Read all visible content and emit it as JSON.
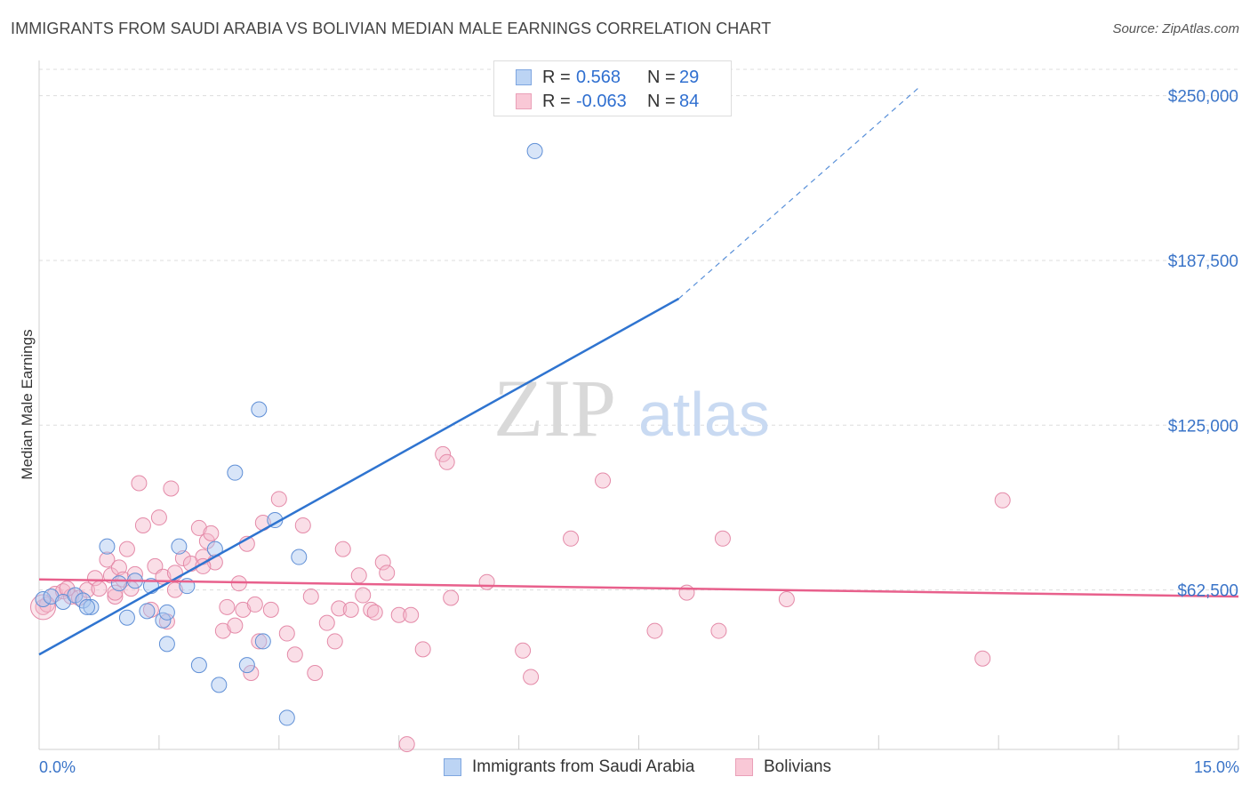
{
  "title": "IMMIGRANTS FROM SAUDI ARABIA VS BOLIVIAN MEDIAN MALE EARNINGS CORRELATION CHART",
  "source": "Source: ZipAtlas.com",
  "watermark": {
    "zip": "ZIP",
    "atlas": "atlas"
  },
  "colors": {
    "blue": "#2f74d0",
    "blue_fill": "#a8c6f0",
    "pink": "#e8608c",
    "pink_fill": "#f4b6c9",
    "tick_text": "#3a74c8"
  },
  "legend": {
    "rows": [
      {
        "r_label": "R =",
        "r_value": "0.568",
        "n_label": "N =",
        "n_value": "29"
      },
      {
        "r_label": "R =",
        "r_value": "-0.063",
        "n_label": "N =",
        "n_value": "84"
      }
    ]
  },
  "series_labels": {
    "blue": "Immigrants from Saudi Arabia",
    "pink": "Bolivians"
  },
  "chart_data": {
    "type": "scatter",
    "title": "IMMIGRANTS FROM SAUDI ARABIA VS BOLIVIAN MEDIAN MALE EARNINGS CORRELATION CHART",
    "xlabel": "",
    "ylabel": "Median Male Earnings",
    "xlim": [
      0,
      15
    ],
    "ylim": [
      2000,
      260000
    ],
    "x_tick_labels": [
      "0.0%",
      "15.0%"
    ],
    "y_ticks": [
      62500,
      125000,
      187500,
      250000
    ],
    "y_tick_labels": [
      "$62,500",
      "$125,000",
      "$187,500",
      "$250,000"
    ],
    "grid": true,
    "legend_position": "top-center",
    "series": [
      {
        "name": "Immigrants from Saudi Arabia",
        "r": 0.568,
        "n": 29,
        "trend": {
          "x0": 0,
          "y0": 38000,
          "x1": 8,
          "y1": 173000,
          "dashed_to_x": 11,
          "dashed_to_y": 253000
        },
        "points": [
          [
            0.05,
            59000
          ],
          [
            0.15,
            60000
          ],
          [
            0.3,
            58000
          ],
          [
            0.45,
            60500
          ],
          [
            0.55,
            58500
          ],
          [
            0.65,
            56000
          ],
          [
            0.85,
            79000
          ],
          [
            1.0,
            65000
          ],
          [
            1.1,
            52000
          ],
          [
            1.2,
            66000
          ],
          [
            1.35,
            54500
          ],
          [
            1.4,
            64000
          ],
          [
            1.55,
            51000
          ],
          [
            1.6,
            42000
          ],
          [
            1.75,
            79000
          ],
          [
            1.85,
            64000
          ],
          [
            2.0,
            34000
          ],
          [
            2.2,
            78000
          ],
          [
            2.25,
            26500
          ],
          [
            2.45,
            107000
          ],
          [
            2.6,
            34000
          ],
          [
            2.75,
            131000
          ],
          [
            2.8,
            43000
          ],
          [
            2.95,
            89000
          ],
          [
            3.1,
            14000
          ],
          [
            3.25,
            75000
          ],
          [
            1.6,
            54000
          ],
          [
            0.6,
            56000
          ],
          [
            6.2,
            229000
          ]
        ]
      },
      {
        "name": "Bolivians",
        "r": -0.063,
        "n": 84,
        "trend": {
          "x0": 0,
          "y0": 66500,
          "x1": 15,
          "y1": 60000
        },
        "points": [
          [
            0.05,
            56000
          ],
          [
            0.1,
            57000
          ],
          [
            0.2,
            61000
          ],
          [
            0.3,
            62000
          ],
          [
            0.4,
            60000
          ],
          [
            0.5,
            59500
          ],
          [
            0.6,
            62500
          ],
          [
            0.7,
            67000
          ],
          [
            0.75,
            63000
          ],
          [
            0.85,
            74000
          ],
          [
            0.9,
            68000
          ],
          [
            0.95,
            60000
          ],
          [
            1.0,
            71000
          ],
          [
            1.05,
            66500
          ],
          [
            1.1,
            78000
          ],
          [
            1.15,
            63000
          ],
          [
            1.2,
            68500
          ],
          [
            1.25,
            103000
          ],
          [
            1.3,
            87000
          ],
          [
            1.4,
            55000
          ],
          [
            1.45,
            71500
          ],
          [
            1.5,
            90000
          ],
          [
            1.55,
            67500
          ],
          [
            1.6,
            50500
          ],
          [
            1.65,
            101000
          ],
          [
            1.7,
            62500
          ],
          [
            1.8,
            74500
          ],
          [
            1.9,
            72500
          ],
          [
            2.0,
            86000
          ],
          [
            2.05,
            75000
          ],
          [
            2.1,
            81000
          ],
          [
            2.15,
            84000
          ],
          [
            2.2,
            73000
          ],
          [
            2.3,
            47000
          ],
          [
            2.35,
            56000
          ],
          [
            2.45,
            49000
          ],
          [
            2.5,
            65000
          ],
          [
            2.55,
            55000
          ],
          [
            2.6,
            80000
          ],
          [
            2.65,
            31000
          ],
          [
            2.7,
            57000
          ],
          [
            2.75,
            43000
          ],
          [
            2.8,
            88000
          ],
          [
            2.9,
            55000
          ],
          [
            3.0,
            97000
          ],
          [
            3.1,
            46000
          ],
          [
            3.2,
            38000
          ],
          [
            3.3,
            87000
          ],
          [
            3.4,
            60000
          ],
          [
            3.45,
            31000
          ],
          [
            3.6,
            50000
          ],
          [
            3.7,
            43000
          ],
          [
            3.75,
            55500
          ],
          [
            3.8,
            78000
          ],
          [
            3.9,
            55000
          ],
          [
            4.0,
            68000
          ],
          [
            4.05,
            60500
          ],
          [
            4.15,
            55000
          ],
          [
            4.2,
            54000
          ],
          [
            4.3,
            73000
          ],
          [
            4.35,
            69000
          ],
          [
            4.5,
            53000
          ],
          [
            4.6,
            4000
          ],
          [
            4.65,
            53000
          ],
          [
            4.8,
            40000
          ],
          [
            5.05,
            114000
          ],
          [
            5.1,
            111000
          ],
          [
            5.15,
            59500
          ],
          [
            5.6,
            65500
          ],
          [
            6.05,
            39500
          ],
          [
            6.15,
            29500
          ],
          [
            6.65,
            82000
          ],
          [
            7.05,
            104000
          ],
          [
            7.7,
            47000
          ],
          [
            8.1,
            61500
          ],
          [
            8.5,
            47000
          ],
          [
            8.55,
            82000
          ],
          [
            9.35,
            59000
          ],
          [
            11.8,
            36500
          ],
          [
            12.05,
            96500
          ],
          [
            2.05,
            71500
          ],
          [
            0.95,
            61500
          ],
          [
            0.35,
            63000
          ],
          [
            1.7,
            69000
          ]
        ]
      }
    ]
  }
}
